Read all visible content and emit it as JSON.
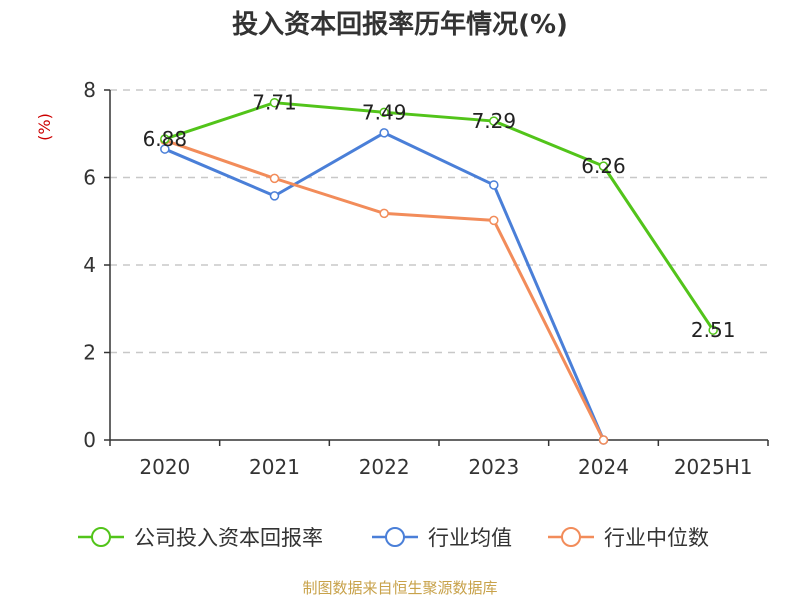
{
  "chart_data": {
    "type": "line",
    "title": "投入资本回报率历年情况(%)",
    "ylabel": "(%)",
    "categories": [
      "2020",
      "2021",
      "2022",
      "2023",
      "2024",
      "2025H1"
    ],
    "yticks": [
      "0",
      "2",
      "4",
      "6",
      "8"
    ],
    "ylim": [
      0,
      8
    ],
    "grid": true,
    "legend_position": "bottom",
    "series": [
      {
        "name": "公司投入资本回报率",
        "color": "#52c41a",
        "values": [
          6.88,
          7.71,
          7.49,
          7.29,
          6.26,
          2.51
        ],
        "labels": [
          "6.88",
          "7.71",
          "7.49",
          "7.29",
          "6.26",
          "2.51"
        ]
      },
      {
        "name": "行业均值",
        "color": "#4a7fd8",
        "values": [
          6.65,
          5.58,
          7.02,
          5.83,
          0,
          null
        ]
      },
      {
        "name": "行业中位数",
        "color": "#f28c5a",
        "values": [
          6.85,
          5.98,
          5.18,
          5.02,
          0,
          null
        ]
      }
    ]
  },
  "source": "制图数据来自恒生聚源数据库",
  "colors": {
    "ylabel": "#cc0000",
    "source": "#c8a24a"
  }
}
